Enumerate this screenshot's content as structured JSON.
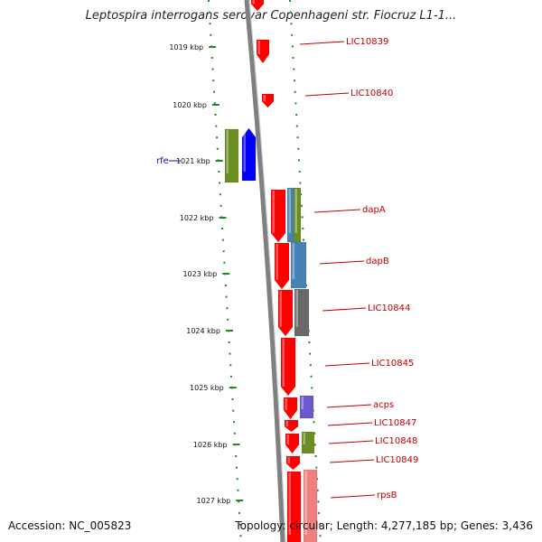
{
  "title": "Leptospira interrogans serovar Copenhageni str. Fiocruz L1-1...",
  "footer": {
    "accession": "Accession: NC_005823",
    "summary": "Topology: circular; Length: 4,277,185 bp; Genes: 3,436"
  },
  "ticks": [
    "1019 kbp",
    "1020 kbp",
    "1021 kbp",
    "1022 kbp",
    "1023 kbp",
    "1024 kbp",
    "1025 kbp",
    "1026 kbp",
    "1027 kbp"
  ],
  "genes_right": [
    "LIC10839",
    "LIC10840",
    "dapA",
    "dapB",
    "LIC10844",
    "LIC10845",
    "acps",
    "LIC10847",
    "LIC10848",
    "LIC10849",
    "rpsB"
  ],
  "genes_left": [
    "rfe"
  ],
  "colors": {
    "forward_gene": "#ff0000",
    "reverse_gene": "#0000ff",
    "backbone": "#808080",
    "tick_mark": "#228b22",
    "label_line": "#c00000",
    "olive": "#6b8e23",
    "steelblue": "#4682b4",
    "gray": "#696969",
    "purple": "#6a5acd",
    "pink": "#f08080"
  }
}
